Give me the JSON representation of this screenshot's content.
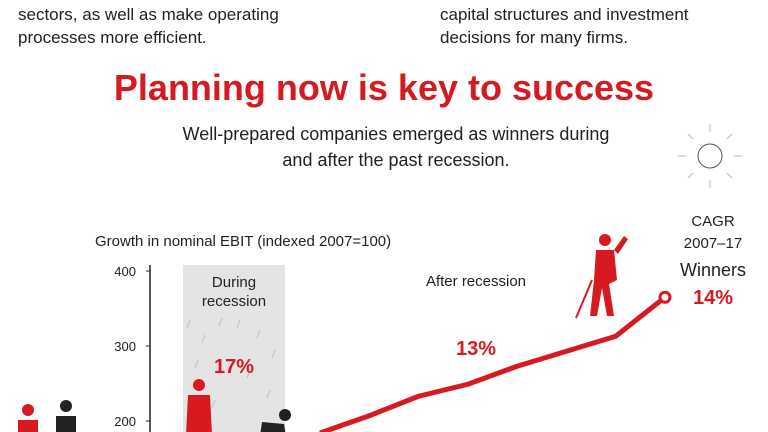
{
  "header": {
    "left_lines": [
      "sectors, as well as make operating",
      "processes more efficient."
    ],
    "right_lines": [
      "capital structures and investment",
      "decisions for many firms."
    ]
  },
  "chart_data": {
    "type": "line",
    "title": "Planning now is key to success",
    "subtitle": [
      "Well-prepared companies emerged as winners during",
      "and after the past recession."
    ],
    "ylabel": "Growth in nominal EBIT (indexed 2007=100)",
    "categories": [
      null,
      null,
      null,
      null,
      null,
      null,
      null,
      null
    ],
    "series": [
      {
        "name": "Winners",
        "color": "#d71920",
        "values": [
          184,
          207,
          233,
          249,
          273,
          293,
          313,
          365
        ]
      }
    ],
    "ylim": [
      180,
      400
    ],
    "yticks": [
      200,
      300,
      400
    ],
    "annotations": {
      "during": [
        "During",
        "recession"
      ],
      "during_value": "17%",
      "after": "After recession",
      "after_value": "13%",
      "cagr": [
        "CAGR",
        "2007–17"
      ],
      "winners_value": "14%"
    }
  }
}
